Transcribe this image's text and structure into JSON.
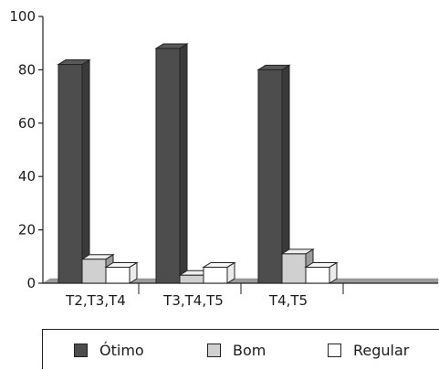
{
  "chart_data": {
    "type": "bar",
    "categories": [
      "T2,T3,T4",
      "T3,T4,T5",
      "T4,T5"
    ],
    "series": [
      {
        "name": "Ótimo",
        "values": [
          82,
          88,
          80
        ],
        "color": "#4d4d4d"
      },
      {
        "name": "Bom",
        "values": [
          9,
          3,
          11
        ],
        "color": "#d0d0d0"
      },
      {
        "name": "Regular",
        "values": [
          6,
          6,
          6
        ],
        "color": "#ffffff"
      }
    ],
    "yticks": [
      "0",
      "20",
      "40",
      "60",
      "80",
      "100"
    ],
    "ylim": [
      0,
      100
    ],
    "legend_position": "bottom",
    "grid": false
  }
}
